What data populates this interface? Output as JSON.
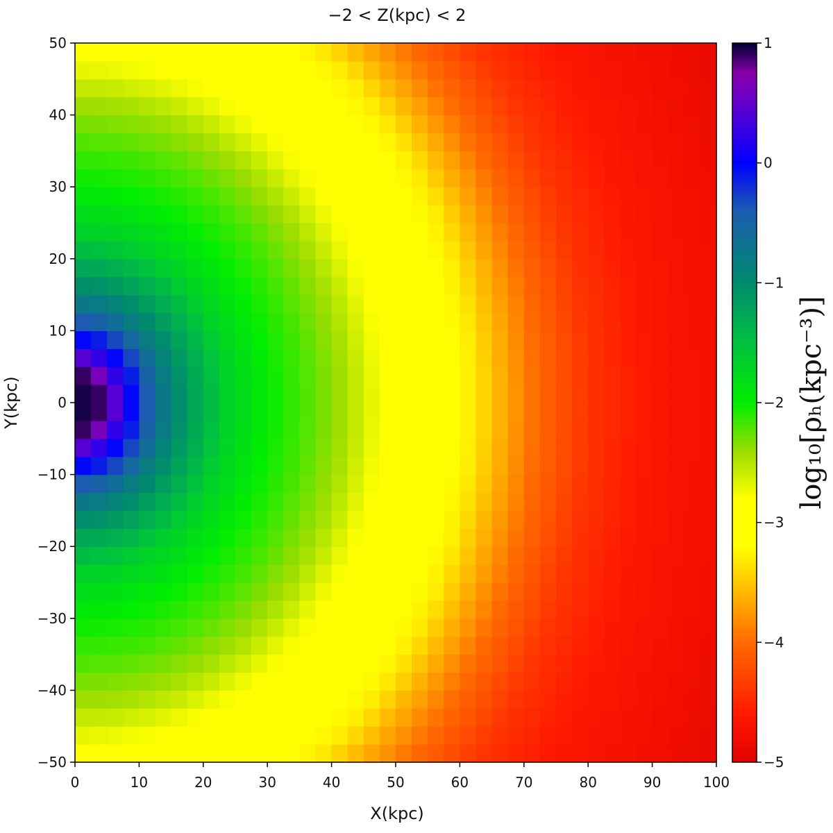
{
  "chart_data": {
    "type": "heatmap",
    "title": "−2 < Z(kpc) < 2",
    "xlabel": "X(kpc)",
    "ylabel": "Y(kpc)",
    "colorbar_label": "log₁₀[ρₕ(kpc⁻³)]",
    "xlim": [
      0,
      100
    ],
    "ylim": [
      -50,
      50
    ],
    "color_range": [
      -5,
      1
    ],
    "x_ticks": [
      0,
      10,
      20,
      30,
      40,
      50,
      60,
      70,
      80,
      90,
      100
    ],
    "y_ticks": [
      -50,
      -40,
      -30,
      -20,
      -10,
      0,
      10,
      20,
      30,
      40,
      50
    ],
    "colorbar_ticks": [
      -5,
      -4,
      -3,
      -2,
      -1,
      0,
      1
    ],
    "grid_bins": [
      40,
      40
    ],
    "bin_size_kpc": 2.5,
    "color_scale": [
      {
        "value": -5.0,
        "color": "#e00000"
      },
      {
        "value": -4.6,
        "color": "#ff1a00"
      },
      {
        "value": -4.0,
        "color": "#ff6a00"
      },
      {
        "value": -3.5,
        "color": "#ffc800"
      },
      {
        "value": -3.2,
        "color": "#ffff00"
      },
      {
        "value": -2.8,
        "color": "#ffff00"
      },
      {
        "value": -2.4,
        "color": "#99dd00"
      },
      {
        "value": -2.0,
        "color": "#00ee00"
      },
      {
        "value": -1.5,
        "color": "#00c040"
      },
      {
        "value": -1.0,
        "color": "#008a6e"
      },
      {
        "value": -0.4,
        "color": "#1c5bb0"
      },
      {
        "value": 0.0,
        "color": "#0000ff"
      },
      {
        "value": 0.5,
        "color": "#6600cc"
      },
      {
        "value": 0.75,
        "color": "#8800aa"
      },
      {
        "value": 1.0,
        "color": "#000033"
      }
    ],
    "radial_profile": [
      {
        "r": 0,
        "value": 1.0
      },
      {
        "r": 4,
        "value": 0.9
      },
      {
        "r": 6,
        "value": 0.5
      },
      {
        "r": 8,
        "value": 0.1
      },
      {
        "r": 10,
        "value": -0.2
      },
      {
        "r": 14,
        "value": -0.8
      },
      {
        "r": 18,
        "value": -1.2
      },
      {
        "r": 24,
        "value": -1.7
      },
      {
        "r": 30,
        "value": -2.0
      },
      {
        "r": 36,
        "value": -2.2
      },
      {
        "r": 42,
        "value": -2.45
      },
      {
        "r": 47,
        "value": -2.75
      },
      {
        "r": 55,
        "value": -3.05
      },
      {
        "r": 62,
        "value": -3.3
      },
      {
        "r": 66,
        "value": -3.6
      },
      {
        "r": 72,
        "value": -4.0
      },
      {
        "r": 80,
        "value": -4.4
      },
      {
        "r": 90,
        "value": -4.65
      },
      {
        "r": 110,
        "value": -4.85
      }
    ]
  }
}
